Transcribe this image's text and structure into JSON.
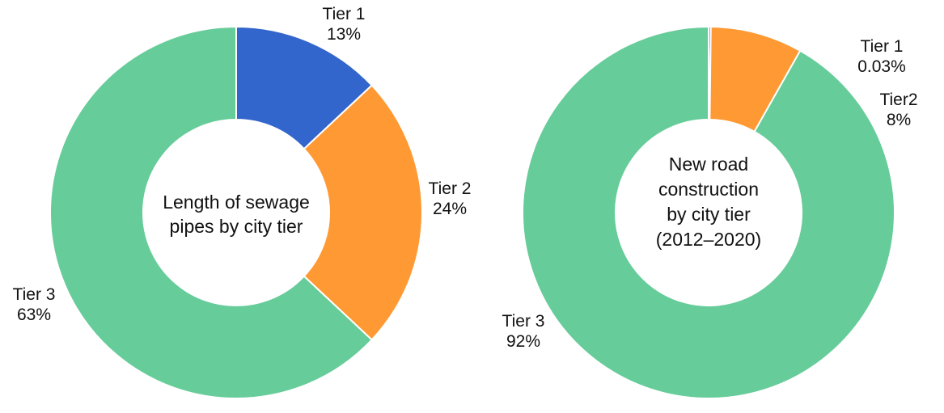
{
  "chart_data": [
    {
      "type": "pie",
      "title": "Length of sewage pipes by city tier",
      "title_lines": [
        "Length of sewage",
        "pipes by city tier"
      ],
      "series": [
        {
          "name": "Tier 1",
          "value_label": "13%",
          "value": 13,
          "color": "#3366CC"
        },
        {
          "name": "Tier 2",
          "value_label": "24%",
          "value": 24,
          "color": "#FF9933"
        },
        {
          "name": "Tier 3",
          "value_label": "63%",
          "value": 63,
          "color": "#66CC99"
        }
      ]
    },
    {
      "type": "pie",
      "title": "New road construction by city tier (2012–2020)",
      "title_lines": [
        "New road",
        "construction",
        "by city tier",
        "(2012–2020)"
      ],
      "series": [
        {
          "name": "Tier 1",
          "value_label": "0.03%",
          "value": 0.03,
          "color": "#3366CC"
        },
        {
          "name": "Tier2",
          "value_label": "8%",
          "value": 8,
          "color": "#FF9933"
        },
        {
          "name": "Tier 3",
          "value_label": "92%",
          "value": 92,
          "color": "#66CC99"
        }
      ]
    }
  ]
}
